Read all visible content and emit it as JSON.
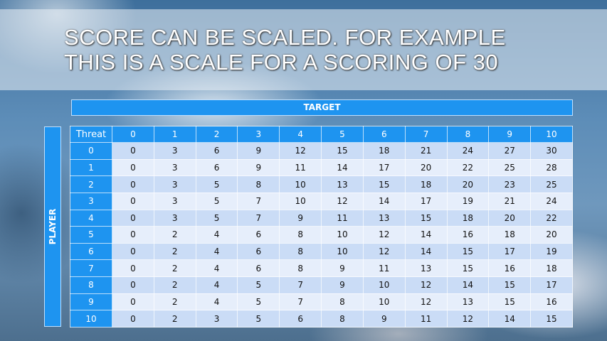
{
  "title_lines": [
    "SCORE CAN BE SCALED. FOR EXAMPLE",
    "THIS IS A SCALE FOR A SCORING OF 30"
  ],
  "target_label": "TARGET",
  "player_label": "PLAYER",
  "table": {
    "corner_label": "Threat",
    "columns": [
      "0",
      "1",
      "2",
      "3",
      "4",
      "5",
      "6",
      "7",
      "8",
      "9",
      "10"
    ],
    "rows": [
      {
        "label": "0",
        "values": [
          0,
          3,
          6,
          9,
          12,
          15,
          18,
          21,
          24,
          27,
          30
        ]
      },
      {
        "label": "1",
        "values": [
          0,
          3,
          6,
          9,
          11,
          14,
          17,
          20,
          22,
          25,
          28
        ]
      },
      {
        "label": "2",
        "values": [
          0,
          3,
          5,
          8,
          10,
          13,
          15,
          18,
          20,
          23,
          25
        ]
      },
      {
        "label": "3",
        "values": [
          0,
          3,
          5,
          7,
          10,
          12,
          14,
          17,
          19,
          21,
          24
        ]
      },
      {
        "label": "4",
        "values": [
          0,
          3,
          5,
          7,
          9,
          11,
          13,
          15,
          18,
          20,
          22
        ]
      },
      {
        "label": "5",
        "values": [
          0,
          2,
          4,
          6,
          8,
          10,
          12,
          14,
          16,
          18,
          20
        ]
      },
      {
        "label": "6",
        "values": [
          0,
          2,
          4,
          6,
          8,
          10,
          12,
          14,
          15,
          17,
          19
        ]
      },
      {
        "label": "7",
        "values": [
          0,
          2,
          4,
          6,
          8,
          9,
          11,
          13,
          15,
          16,
          18
        ]
      },
      {
        "label": "8",
        "values": [
          0,
          2,
          4,
          5,
          7,
          9,
          10,
          12,
          14,
          15,
          17
        ]
      },
      {
        "label": "9",
        "values": [
          0,
          2,
          4,
          5,
          7,
          8,
          10,
          12,
          13,
          15,
          16
        ]
      },
      {
        "label": "10",
        "values": [
          0,
          2,
          3,
          5,
          6,
          8,
          9,
          11,
          12,
          14,
          15
        ]
      }
    ]
  },
  "colors": {
    "header_blue": "#1e94f0",
    "row_dark": "#cadcf6",
    "row_light": "#e6eefb"
  }
}
